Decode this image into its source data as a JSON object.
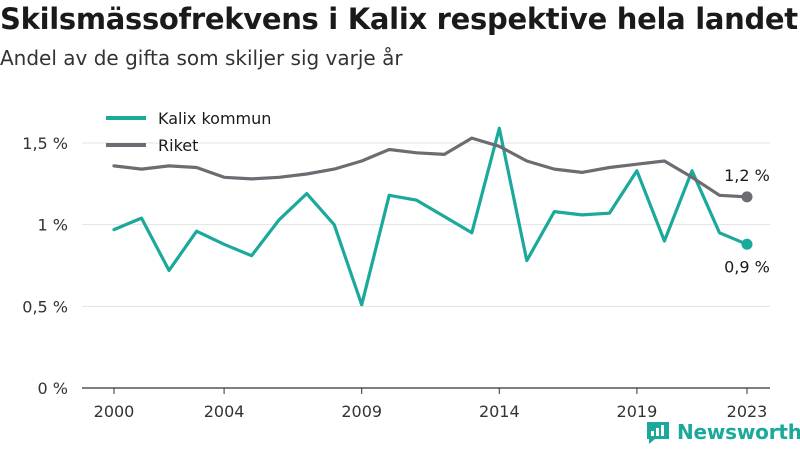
{
  "header": {
    "title": "Skilsmässofrekvens i Kalix respektive hela landet",
    "subtitle": "Andel av de gifta som skiljer sig varje år"
  },
  "brand": {
    "name": "Newsworthy",
    "color": "#1aa99b"
  },
  "chart_data": {
    "type": "line",
    "title": "Skilsmässofrekvens i Kalix respektive hela landet",
    "subtitle": "Andel av de gifta som skiljer sig varje år",
    "x": [
      2000,
      2001,
      2002,
      2003,
      2004,
      2005,
      2006,
      2007,
      2008,
      2009,
      2010,
      2011,
      2012,
      2013,
      2014,
      2015,
      2016,
      2017,
      2018,
      2019,
      2020,
      2021,
      2022,
      2023
    ],
    "xticks": [
      2000,
      2004,
      2009,
      2014,
      2019,
      2023
    ],
    "yticks": [
      0,
      0.5,
      1,
      1.5
    ],
    "ytick_labels": [
      "0 %",
      "0,5 %",
      "1 %",
      "1,5 %"
    ],
    "ylim": [
      0,
      1.6
    ],
    "grid": "horizontal",
    "legend_position": "top-left",
    "series": [
      {
        "name": "Kalix kommun",
        "color": "#1aa99b",
        "values": [
          0.97,
          1.04,
          0.72,
          0.96,
          0.88,
          0.81,
          1.03,
          1.19,
          1.0,
          0.51,
          1.18,
          1.15,
          1.05,
          0.95,
          1.59,
          0.78,
          1.08,
          1.06,
          1.07,
          1.33,
          0.9,
          1.33,
          0.95,
          0.88
        ],
        "end_label": "0,9 %"
      },
      {
        "name": "Riket",
        "color": "#6e6b72",
        "values": [
          1.36,
          1.34,
          1.36,
          1.35,
          1.29,
          1.28,
          1.29,
          1.31,
          1.34,
          1.39,
          1.46,
          1.44,
          1.43,
          1.53,
          1.48,
          1.39,
          1.34,
          1.32,
          1.35,
          1.37,
          1.39,
          1.29,
          1.18,
          1.17
        ],
        "end_label": "1,2 %"
      }
    ]
  }
}
